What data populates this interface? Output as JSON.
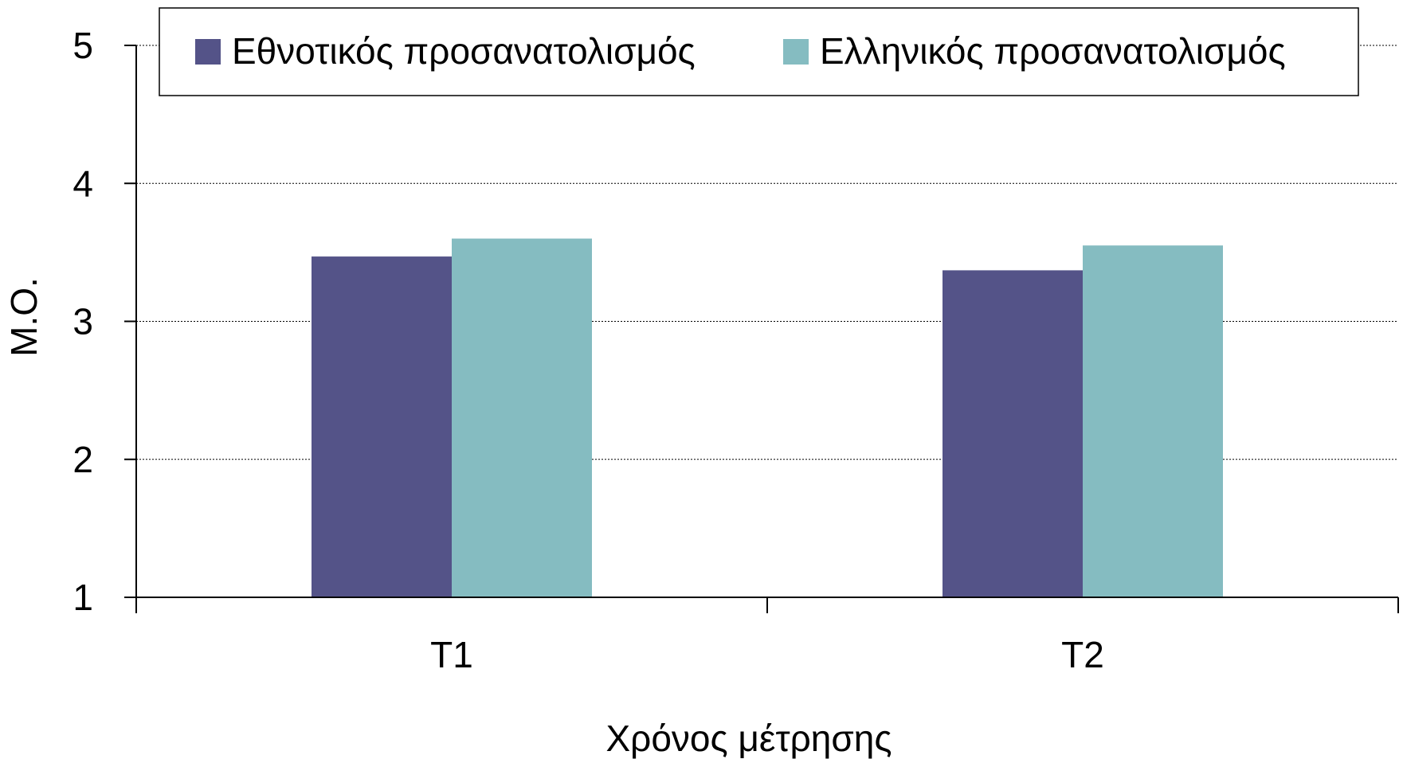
{
  "chart_data": {
    "type": "bar",
    "categories": [
      "T1",
      "T2"
    ],
    "series": [
      {
        "name": "Εθνοτικός προσανατολισμός",
        "values": [
          3.47,
          3.37
        ],
        "color": "#545388"
      },
      {
        "name": "Ελληνικός προσανατολισμός",
        "values": [
          3.6,
          3.55
        ],
        "color": "#85BCC1"
      }
    ],
    "title": "",
    "xlabel": "Χρόνος μέτρησης",
    "ylabel": "Μ.Ο.",
    "ylim": [
      1,
      5
    ],
    "yticks": [
      "1",
      "2",
      "3",
      "4",
      "5"
    ],
    "grid": true,
    "legend_position": "top"
  }
}
